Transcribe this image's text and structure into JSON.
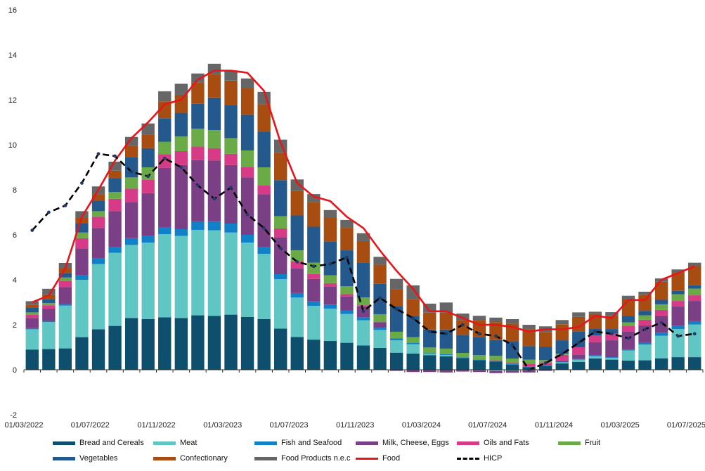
{
  "chart_data": {
    "type": "bar",
    "stacked": true,
    "title": "",
    "xlabel": "",
    "ylabel": "",
    "ylim": [
      -2,
      16
    ],
    "yticks": [
      -2,
      0,
      2,
      4,
      6,
      8,
      10,
      12,
      14,
      16
    ],
    "grid": false,
    "categories": [
      "03/2022",
      "04/2022",
      "05/2022",
      "06/2022",
      "07/2022",
      "08/2022",
      "09/2022",
      "10/2022",
      "11/2022",
      "12/2022",
      "01/2023",
      "02/2023",
      "03/2023",
      "04/2023",
      "05/2023",
      "06/2023",
      "07/2023",
      "08/2023",
      "09/2023",
      "10/2023",
      "11/2023",
      "12/2023",
      "01/2024",
      "02/2024",
      "03/2024",
      "04/2024",
      "05/2024",
      "06/2024",
      "07/2024",
      "08/2024",
      "09/2024",
      "10/2024",
      "11/2024",
      "12/2024",
      "01/2025",
      "02/2025",
      "03/2025",
      "04/2025",
      "05/2025",
      "06/2025",
      "07/2025"
    ],
    "x_tick_labels": [
      "01/03/2022",
      "01/07/2022",
      "01/11/2022",
      "01/03/2023",
      "01/07/2023",
      "01/11/2023",
      "01/03/2024",
      "01/07/2024",
      "01/11/2024",
      "01/03/2025",
      "01/07/2025"
    ],
    "series": [
      {
        "name": "Bread and Cereals",
        "color": "#0e4f6e",
        "values": [
          0.9,
          0.92,
          0.95,
          1.45,
          1.8,
          1.95,
          2.3,
          2.25,
          2.33,
          2.3,
          2.42,
          2.4,
          2.45,
          2.35,
          2.25,
          1.83,
          1.46,
          1.34,
          1.28,
          1.2,
          1.08,
          0.97,
          0.76,
          0.72,
          0.65,
          0.6,
          0.52,
          0.42,
          0.37,
          0.22,
          0.12,
          0.18,
          0.28,
          0.35,
          0.5,
          0.45,
          0.41,
          0.42,
          0.51,
          0.56,
          0.56
        ]
      },
      {
        "name": "Meat",
        "color": "#5fc6c4",
        "values": [
          0.9,
          1.2,
          1.9,
          2.55,
          2.9,
          3.25,
          3.25,
          3.4,
          3.7,
          3.65,
          3.8,
          3.8,
          3.65,
          3.3,
          2.9,
          2.2,
          1.75,
          1.5,
          1.44,
          1.28,
          1.12,
          0.8,
          0.55,
          0.42,
          0.05,
          0.05,
          0.0,
          -0.02,
          -0.05,
          -0.03,
          -0.02,
          0.0,
          0.05,
          0.1,
          0.1,
          0.08,
          0.45,
          0.7,
          1.0,
          1.25,
          1.45
        ]
      },
      {
        "name": "Fish and Seafood",
        "color": "#1080c8",
        "values": [
          0.05,
          0.05,
          0.07,
          0.2,
          0.25,
          0.25,
          0.3,
          0.3,
          0.3,
          0.3,
          0.35,
          0.4,
          0.4,
          0.35,
          0.3,
          0.22,
          0.2,
          0.2,
          0.18,
          0.16,
          0.12,
          0.1,
          0.08,
          0.06,
          0.04,
          0.04,
          0.03,
          0.03,
          0.03,
          0.03,
          0.03,
          0.03,
          0.03,
          0.03,
          0.03,
          0.03,
          0.05,
          0.1,
          0.15,
          0.15,
          0.15
        ]
      },
      {
        "name": "Milk, Cheese, Eggs",
        "color": "#7b3f86",
        "values": [
          0.45,
          0.55,
          0.75,
          1.2,
          1.35,
          1.6,
          1.6,
          1.9,
          2.65,
          2.85,
          2.75,
          2.7,
          2.6,
          2.55,
          2.35,
          1.65,
          1.1,
          1.0,
          0.8,
          0.62,
          0.5,
          0.25,
          -0.05,
          -0.1,
          -0.1,
          -0.12,
          -0.08,
          -0.08,
          -0.1,
          -0.1,
          -0.1,
          -0.05,
          0.05,
          0.2,
          0.6,
          0.75,
          0.8,
          0.75,
          0.75,
          0.85,
          0.9
        ]
      },
      {
        "name": "Oils and Fats",
        "color": "#d73a86",
        "values": [
          0.15,
          0.15,
          0.28,
          0.45,
          0.5,
          0.55,
          0.6,
          0.6,
          0.6,
          0.62,
          0.6,
          0.55,
          0.5,
          0.45,
          0.4,
          0.38,
          0.3,
          0.22,
          0.15,
          0.1,
          0.05,
          0.0,
          0.0,
          0.0,
          0.0,
          0.0,
          0.0,
          0.0,
          0.02,
          0.05,
          0.1,
          0.1,
          0.25,
          0.32,
          0.3,
          0.3,
          0.25,
          0.25,
          0.25,
          0.25,
          0.25
        ]
      },
      {
        "name": "Fruit",
        "color": "#6aab47",
        "values": [
          0.1,
          0.1,
          0.15,
          0.25,
          0.25,
          0.3,
          0.5,
          0.55,
          0.55,
          0.65,
          0.8,
          0.8,
          0.7,
          0.75,
          0.8,
          0.55,
          0.5,
          0.5,
          0.35,
          0.35,
          0.35,
          0.35,
          0.3,
          0.25,
          0.25,
          0.25,
          0.2,
          0.2,
          0.2,
          0.2,
          0.2,
          0.12,
          0.05,
          0.0,
          0.0,
          0.0,
          0.15,
          0.2,
          0.25,
          0.3,
          0.3
        ]
      },
      {
        "name": "Vegetables",
        "color": "#23598d",
        "values": [
          0.2,
          0.18,
          0.2,
          0.4,
          0.45,
          0.6,
          0.9,
          0.85,
          1.05,
          1.05,
          1.1,
          1.45,
          1.45,
          1.6,
          1.6,
          1.6,
          1.55,
          1.6,
          1.5,
          1.6,
          1.55,
          1.35,
          1.15,
          0.95,
          0.8,
          0.85,
          0.8,
          0.8,
          0.7,
          0.75,
          0.6,
          0.6,
          0.6,
          0.7,
          0.3,
          0.2,
          0.28,
          0.2,
          0.2,
          0.15,
          0.15
        ]
      },
      {
        "name": "Confectionary",
        "color": "#a84d12",
        "values": [
          0.15,
          0.2,
          0.2,
          0.25,
          0.3,
          0.35,
          0.5,
          0.6,
          0.75,
          0.8,
          0.95,
          1.05,
          1.1,
          1.15,
          1.2,
          1.2,
          1.1,
          1.1,
          1.05,
          1.0,
          0.95,
          0.85,
          0.75,
          0.75,
          0.75,
          0.75,
          0.65,
          0.75,
          0.8,
          0.8,
          0.75,
          0.65,
          0.7,
          0.65,
          0.65,
          0.6,
          0.75,
          0.7,
          0.8,
          0.8,
          0.85
        ]
      },
      {
        "name": "Food Products n.e.c",
        "color": "#666666",
        "values": [
          0.15,
          0.25,
          0.25,
          0.3,
          0.35,
          0.4,
          0.4,
          0.5,
          0.45,
          0.5,
          0.4,
          0.45,
          0.45,
          0.45,
          0.55,
          0.6,
          0.5,
          0.35,
          0.35,
          0.35,
          0.35,
          0.35,
          0.45,
          0.6,
          0.4,
          0.45,
          0.3,
          0.2,
          0.2,
          0.2,
          0.2,
          0.25,
          0.2,
          0.2,
          0.1,
          0.15,
          0.15,
          0.15,
          0.15,
          0.15,
          0.15
        ]
      }
    ],
    "lines": [
      {
        "name": "Food",
        "color": "#e8141b",
        "style": "solid",
        "values": [
          3.0,
          3.3,
          4.5,
          6.8,
          8.0,
          9.3,
          10.3,
          11.0,
          11.8,
          12.0,
          12.9,
          13.3,
          13.3,
          13.2,
          12.4,
          10.1,
          8.3,
          7.7,
          7.5,
          6.8,
          6.3,
          5.3,
          4.4,
          3.6,
          2.6,
          2.6,
          2.3,
          2.0,
          2.0,
          1.9,
          1.7,
          1.8,
          1.8,
          1.9,
          2.4,
          2.3,
          3.1,
          3.1,
          4.0,
          4.3,
          4.6
        ]
      },
      {
        "name": "HICP",
        "color": "#000000",
        "style": "dashed",
        "values": [
          6.2,
          7.0,
          7.3,
          8.3,
          9.6,
          9.5,
          8.8,
          8.6,
          9.4,
          9.0,
          8.2,
          7.6,
          8.1,
          6.9,
          6.3,
          5.4,
          4.8,
          4.6,
          4.7,
          5.0,
          2.6,
          3.2,
          2.7,
          2.3,
          1.7,
          1.6,
          2.0,
          1.6,
          1.5,
          1.1,
          0.0,
          0.3,
          0.7,
          1.2,
          1.7,
          1.6,
          1.4,
          1.8,
          2.1,
          1.5,
          1.6
        ]
      }
    ],
    "legend": {
      "placement": "bottom",
      "items": [
        "Bread and Cereals",
        "Meat",
        "Fish and Seafood",
        "Milk, Cheese, Eggs",
        "Oils and Fats",
        "Fruit",
        "Vegetables",
        "Confectionary",
        "Food Products n.e.c",
        "Food",
        "HICP"
      ]
    }
  }
}
